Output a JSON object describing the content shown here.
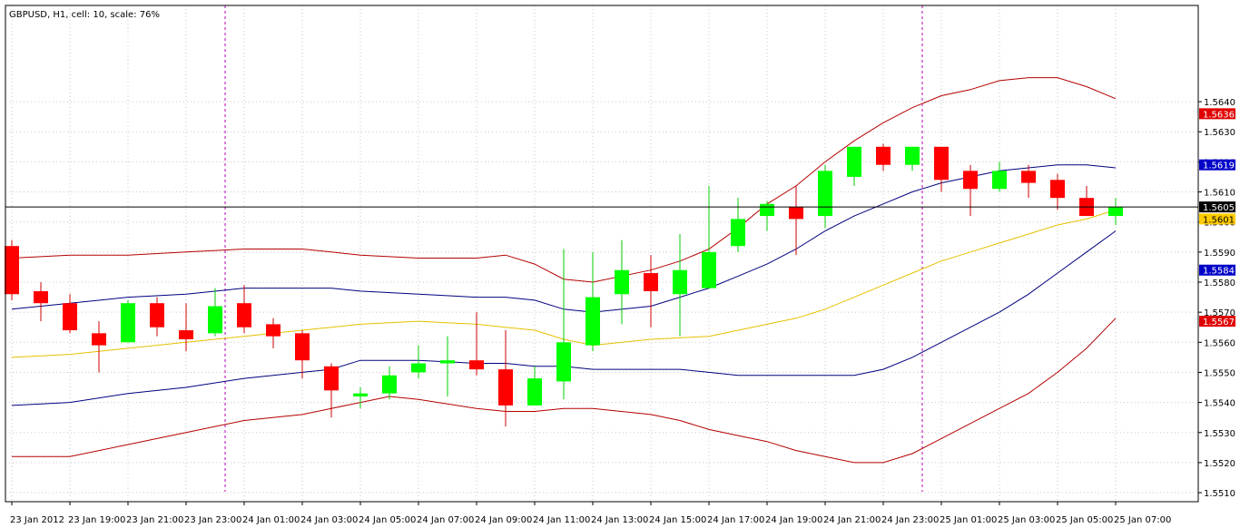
{
  "window": {
    "title": "GBPUSD, H1, cell: 10, scale: 76%"
  },
  "colors": {
    "bull": "#00ff00",
    "bear": "#ff0000",
    "wick_bull": "#00cc00",
    "wick_bear": "#cc0000",
    "band_outer": "#b40000",
    "band_middle": "#000080",
    "ma": "#e6c000",
    "period_separator": "#b400b4",
    "grid": "#c8c8c8",
    "price_line": "#000000"
  },
  "chart_data": {
    "type": "candlestick",
    "title": "GBPUSD, H1, cell: 10, scale: 76%",
    "ylim": [
      1.5507,
      1.5672
    ],
    "yticks": [
      "1.5640",
      "1.5630",
      "1.5620",
      "1.5610",
      "1.5600",
      "1.5590",
      "1.5580",
      "1.5570",
      "1.5560",
      "1.5550",
      "1.5540",
      "1.5530",
      "1.5520",
      "1.5510"
    ],
    "xtick_labels": [
      "23 Jan 2012",
      "23 Jan 19:00",
      "23 Jan 21:00",
      "23 Jan 23:00",
      "24 Jan 01:00",
      "24 Jan 03:00",
      "24 Jan 05:00",
      "24 Jan 07:00",
      "24 Jan 09:00",
      "24 Jan 11:00",
      "24 Jan 13:00",
      "24 Jan 15:00",
      "24 Jan 17:00",
      "24 Jan 19:00",
      "24 Jan 21:00",
      "24 Jan 23:00",
      "25 Jan 01:00",
      "25 Jan 03:00",
      "25 Jan 05:00",
      "25 Jan 07:00"
    ],
    "separators_at_candle": [
      7,
      31
    ],
    "candles": [
      {
        "o": 1.5592,
        "h": 1.5594,
        "l": 1.5574,
        "c": 1.5576
      },
      {
        "o": 1.5577,
        "h": 1.558,
        "l": 1.5567,
        "c": 1.5573
      },
      {
        "o": 1.5573,
        "h": 1.5576,
        "l": 1.5563,
        "c": 1.5564
      },
      {
        "o": 1.5563,
        "h": 1.5567,
        "l": 1.555,
        "c": 1.5559
      },
      {
        "o": 1.556,
        "h": 1.5574,
        "l": 1.556,
        "c": 1.5573
      },
      {
        "o": 1.5573,
        "h": 1.5575,
        "l": 1.5562,
        "c": 1.5565
      },
      {
        "o": 1.5564,
        "h": 1.5573,
        "l": 1.5557,
        "c": 1.5561
      },
      {
        "o": 1.5563,
        "h": 1.5578,
        "l": 1.5562,
        "c": 1.5572
      },
      {
        "o": 1.5573,
        "h": 1.5579,
        "l": 1.5563,
        "c": 1.5565
      },
      {
        "o": 1.5566,
        "h": 1.5568,
        "l": 1.5558,
        "c": 1.5562
      },
      {
        "o": 1.5563,
        "h": 1.5564,
        "l": 1.5548,
        "c": 1.5554
      },
      {
        "o": 1.5552,
        "h": 1.5553,
        "l": 1.5535,
        "c": 1.5544
      },
      {
        "o": 1.5542,
        "h": 1.5545,
        "l": 1.5538,
        "c": 1.5543
      },
      {
        "o": 1.5543,
        "h": 1.5552,
        "l": 1.5541,
        "c": 1.5549
      },
      {
        "o": 1.555,
        "h": 1.5559,
        "l": 1.5548,
        "c": 1.5553
      },
      {
        "o": 1.5553,
        "h": 1.5562,
        "l": 1.5542,
        "c": 1.5554
      },
      {
        "o": 1.5554,
        "h": 1.557,
        "l": 1.5549,
        "c": 1.5551
      },
      {
        "o": 1.5551,
        "h": 1.5564,
        "l": 1.5532,
        "c": 1.5539
      },
      {
        "o": 1.5539,
        "h": 1.5552,
        "l": 1.5539,
        "c": 1.5548
      },
      {
        "o": 1.5547,
        "h": 1.5591,
        "l": 1.5541,
        "c": 1.556
      },
      {
        "o": 1.5559,
        "h": 1.559,
        "l": 1.5557,
        "c": 1.5575
      },
      {
        "o": 1.5576,
        "h": 1.5594,
        "l": 1.5566,
        "c": 1.5584
      },
      {
        "o": 1.5583,
        "h": 1.5589,
        "l": 1.5565,
        "c": 1.5577
      },
      {
        "o": 1.5576,
        "h": 1.5596,
        "l": 1.5562,
        "c": 1.5584
      },
      {
        "o": 1.5578,
        "h": 1.5612,
        "l": 1.5578,
        "c": 1.559
      },
      {
        "o": 1.5592,
        "h": 1.5608,
        "l": 1.559,
        "c": 1.5601
      },
      {
        "o": 1.5602,
        "h": 1.5607,
        "l": 1.5597,
        "c": 1.5606
      },
      {
        "o": 1.5605,
        "h": 1.5612,
        "l": 1.5589,
        "c": 1.5601
      },
      {
        "o": 1.5602,
        "h": 1.5619,
        "l": 1.5598,
        "c": 1.5617
      },
      {
        "o": 1.5615,
        "h": 1.5625,
        "l": 1.5612,
        "c": 1.5625
      },
      {
        "o": 1.5625,
        "h": 1.5626,
        "l": 1.5617,
        "c": 1.5619
      },
      {
        "o": 1.5619,
        "h": 1.5625,
        "l": 1.5617,
        "c": 1.5625
      },
      {
        "o": 1.5625,
        "h": 1.5625,
        "l": 1.561,
        "c": 1.5614
      },
      {
        "o": 1.5617,
        "h": 1.5619,
        "l": 1.5602,
        "c": 1.5611
      },
      {
        "o": 1.5611,
        "h": 1.562,
        "l": 1.561,
        "c": 1.5617
      },
      {
        "o": 1.5617,
        "h": 1.5619,
        "l": 1.5608,
        "c": 1.5613
      },
      {
        "o": 1.5614,
        "h": 1.5616,
        "l": 1.5604,
        "c": 1.5608
      },
      {
        "o": 1.5608,
        "h": 1.5612,
        "l": 1.5602,
        "c": 1.5602
      },
      {
        "o": 1.5602,
        "h": 1.5608,
        "l": 1.5599,
        "c": 1.5605
      }
    ],
    "bands": {
      "upper_outer": [
        [
          0,
          1.5588
        ],
        [
          2,
          1.5589
        ],
        [
          4,
          1.5589
        ],
        [
          6,
          1.559
        ],
        [
          8,
          1.5591
        ],
        [
          10,
          1.5591
        ],
        [
          11,
          1.559
        ],
        [
          12,
          1.5589
        ],
        [
          14,
          1.5588
        ],
        [
          16,
          1.5588
        ],
        [
          17,
          1.5589
        ],
        [
          18,
          1.5586
        ],
        [
          19,
          1.5581
        ],
        [
          20,
          1.558
        ],
        [
          22,
          1.5584
        ],
        [
          23,
          1.5587
        ],
        [
          24,
          1.5591
        ],
        [
          25,
          1.5598
        ],
        [
          26,
          1.5606
        ],
        [
          27,
          1.5612
        ],
        [
          28,
          1.562
        ],
        [
          29,
          1.5627
        ],
        [
          30,
          1.5633
        ],
        [
          31,
          1.5638
        ],
        [
          32,
          1.5642
        ],
        [
          33,
          1.5644
        ],
        [
          34,
          1.5647
        ],
        [
          35,
          1.5648
        ],
        [
          36,
          1.5648
        ],
        [
          37,
          1.5645
        ],
        [
          38,
          1.5641
        ]
      ],
      "upper_middle": [
        [
          0,
          1.5571
        ],
        [
          2,
          1.5573
        ],
        [
          4,
          1.5575
        ],
        [
          6,
          1.5576
        ],
        [
          8,
          1.5578
        ],
        [
          10,
          1.5578
        ],
        [
          11,
          1.5578
        ],
        [
          12,
          1.5577
        ],
        [
          14,
          1.5576
        ],
        [
          16,
          1.5575
        ],
        [
          17,
          1.5575
        ],
        [
          18,
          1.5574
        ],
        [
          19,
          1.5571
        ],
        [
          20,
          1.557
        ],
        [
          22,
          1.5572
        ],
        [
          23,
          1.5575
        ],
        [
          24,
          1.5578
        ],
        [
          25,
          1.5582
        ],
        [
          26,
          1.5586
        ],
        [
          27,
          1.5591
        ],
        [
          28,
          1.5597
        ],
        [
          29,
          1.5602
        ],
        [
          30,
          1.5606
        ],
        [
          31,
          1.561
        ],
        [
          32,
          1.5613
        ],
        [
          33,
          1.5615
        ],
        [
          34,
          1.5617
        ],
        [
          35,
          1.5618
        ],
        [
          36,
          1.5619
        ],
        [
          37,
          1.5619
        ],
        [
          38,
          1.5618
        ]
      ],
      "ma": [
        [
          0,
          1.5555
        ],
        [
          2,
          1.5556
        ],
        [
          4,
          1.5558
        ],
        [
          6,
          1.556
        ],
        [
          8,
          1.5562
        ],
        [
          10,
          1.5564
        ],
        [
          12,
          1.5566
        ],
        [
          14,
          1.5567
        ],
        [
          16,
          1.5566
        ],
        [
          17,
          1.5565
        ],
        [
          18,
          1.5564
        ],
        [
          19,
          1.5561
        ],
        [
          20,
          1.5559
        ],
        [
          22,
          1.5561
        ],
        [
          24,
          1.5562
        ],
        [
          26,
          1.5566
        ],
        [
          27,
          1.5568
        ],
        [
          28,
          1.5571
        ],
        [
          29,
          1.5575
        ],
        [
          30,
          1.5579
        ],
        [
          31,
          1.5583
        ],
        [
          32,
          1.5587
        ],
        [
          33,
          1.559
        ],
        [
          34,
          1.5593
        ],
        [
          35,
          1.5596
        ],
        [
          36,
          1.5599
        ],
        [
          37,
          1.5601
        ],
        [
          38,
          1.5604
        ]
      ],
      "lower_middle": [
        [
          0,
          1.5539
        ],
        [
          2,
          1.554
        ],
        [
          4,
          1.5543
        ],
        [
          6,
          1.5545
        ],
        [
          8,
          1.5548
        ],
        [
          10,
          1.555
        ],
        [
          11,
          1.5551
        ],
        [
          12,
          1.5554
        ],
        [
          13,
          1.5554
        ],
        [
          14,
          1.5554
        ],
        [
          16,
          1.5553
        ],
        [
          17,
          1.5553
        ],
        [
          18,
          1.5552
        ],
        [
          19,
          1.5552
        ],
        [
          20,
          1.5551
        ],
        [
          22,
          1.5551
        ],
        [
          23,
          1.5551
        ],
        [
          24,
          1.555
        ],
        [
          25,
          1.5549
        ],
        [
          26,
          1.5549
        ],
        [
          28,
          1.5549
        ],
        [
          29,
          1.5549
        ],
        [
          30,
          1.5551
        ],
        [
          31,
          1.5555
        ],
        [
          32,
          1.556
        ],
        [
          33,
          1.5565
        ],
        [
          34,
          1.557
        ],
        [
          35,
          1.5576
        ],
        [
          36,
          1.5583
        ],
        [
          37,
          1.559
        ],
        [
          38,
          1.5597
        ]
      ],
      "lower_outer": [
        [
          0,
          1.5522
        ],
        [
          2,
          1.5522
        ],
        [
          4,
          1.5526
        ],
        [
          6,
          1.553
        ],
        [
          8,
          1.5534
        ],
        [
          10,
          1.5536
        ],
        [
          11,
          1.5538
        ],
        [
          12,
          1.554
        ],
        [
          13,
          1.5542
        ],
        [
          14,
          1.5541
        ],
        [
          16,
          1.5538
        ],
        [
          17,
          1.5537
        ],
        [
          18,
          1.5537
        ],
        [
          19,
          1.5538
        ],
        [
          20,
          1.5538
        ],
        [
          22,
          1.5536
        ],
        [
          23,
          1.5534
        ],
        [
          24,
          1.5531
        ],
        [
          25,
          1.5529
        ],
        [
          26,
          1.5527
        ],
        [
          27,
          1.5524
        ],
        [
          28,
          1.5522
        ],
        [
          29,
          1.552
        ],
        [
          30,
          1.552
        ],
        [
          31,
          1.5523
        ],
        [
          32,
          1.5528
        ],
        [
          33,
          1.5533
        ],
        [
          34,
          1.5538
        ],
        [
          35,
          1.5543
        ],
        [
          36,
          1.555
        ],
        [
          37,
          1.5558
        ],
        [
          38,
          1.5568
        ]
      ]
    },
    "price_line": 1.5605,
    "price_tags": [
      {
        "label": "1.5636",
        "value": 1.5636,
        "bg": "#e00000",
        "fg": "#ffffff"
      },
      {
        "label": "1.5619",
        "value": 1.5619,
        "bg": "#0000c8",
        "fg": "#ffffff"
      },
      {
        "label": "1.5605",
        "value": 1.5605,
        "bg": "#000000",
        "fg": "#ffffff"
      },
      {
        "label": "1.5601",
        "value": 1.5601,
        "bg": "#ffcc00",
        "fg": "#000000"
      },
      {
        "label": "1.5584",
        "value": 1.5584,
        "bg": "#0000c8",
        "fg": "#ffffff"
      },
      {
        "label": "1.5567",
        "value": 1.5567,
        "bg": "#e00000",
        "fg": "#ffffff"
      }
    ]
  }
}
